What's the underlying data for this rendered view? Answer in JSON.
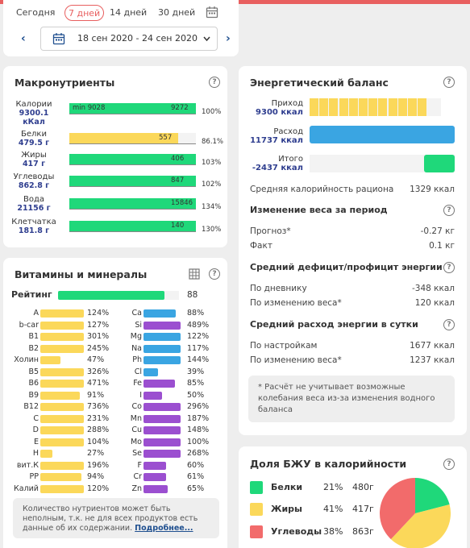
{
  "colors": {
    "accent": "#e85f5f",
    "nav": "#1f4f8f",
    "green": "#1fd87a",
    "yellow": "#fbd85a",
    "blue": "#3aa5e2",
    "purple": "#9b4fd0",
    "red": "#f26b6b"
  },
  "toolbar": {
    "tabs": [
      "Сегодня",
      "7 дней",
      "14 дней",
      "30 дней"
    ],
    "active_tab": "7 дней",
    "date_range": "18 сен 2020 - 24 сен 2020"
  },
  "macro": {
    "title": "Макронутриенты",
    "rows": [
      {
        "name": "Калории",
        "value": "9300.1",
        "unit": "кКал",
        "bar_label": "9272",
        "min_label": "min 9028",
        "pct": "100%",
        "fill": 1.0,
        "color": "green"
      },
      {
        "name": "Белки",
        "value": "479.5 г",
        "unit": "",
        "bar_label": "557",
        "min_label": "",
        "pct": "86.1%",
        "fill": 0.861,
        "color": "yellow"
      },
      {
        "name": "Жиры",
        "value": "417 г",
        "unit": "",
        "bar_label": "406",
        "min_label": "",
        "pct": "103%",
        "fill": 1.0,
        "color": "green"
      },
      {
        "name": "Углеводы",
        "value": "862.8 г",
        "unit": "",
        "bar_label": "847",
        "min_label": "",
        "pct": "102%",
        "fill": 1.0,
        "color": "green"
      },
      {
        "name": "Вода",
        "value": "21156 г",
        "unit": "",
        "bar_label": "15846",
        "min_label": "",
        "pct": "134%",
        "fill": 1.0,
        "color": "green"
      },
      {
        "name": "Клетчатка",
        "value": "181.8 г",
        "unit": "",
        "bar_label": "140",
        "min_label": "",
        "pct": "130%",
        "fill": 1.0,
        "color": "green"
      }
    ]
  },
  "vitamins": {
    "title": "Витамины и минералы",
    "rating_label": "Рейтинг",
    "rating_value": "88",
    "rating_fill": 0.88,
    "left": [
      {
        "name": "A",
        "pct": "124%",
        "fill": 1.0
      },
      {
        "name": "b-car",
        "pct": "127%",
        "fill": 1.0
      },
      {
        "name": "B1",
        "pct": "301%",
        "fill": 1.0
      },
      {
        "name": "B2",
        "pct": "245%",
        "fill": 1.0
      },
      {
        "name": "Холин",
        "pct": "47%",
        "fill": 0.47
      },
      {
        "name": "B5",
        "pct": "326%",
        "fill": 1.0
      },
      {
        "name": "B6",
        "pct": "471%",
        "fill": 1.0
      },
      {
        "name": "B9",
        "pct": "91%",
        "fill": 0.91
      },
      {
        "name": "B12",
        "pct": "736%",
        "fill": 1.0
      },
      {
        "name": "C",
        "pct": "231%",
        "fill": 1.0
      },
      {
        "name": "D",
        "pct": "288%",
        "fill": 1.0
      },
      {
        "name": "E",
        "pct": "104%",
        "fill": 1.0
      },
      {
        "name": "H",
        "pct": "27%",
        "fill": 0.27
      },
      {
        "name": "вит.К",
        "pct": "196%",
        "fill": 1.0
      },
      {
        "name": "PP",
        "pct": "94%",
        "fill": 0.94
      },
      {
        "name": "Калий",
        "pct": "120%",
        "fill": 1.0
      }
    ],
    "right": [
      {
        "name": "Ca",
        "pct": "88%",
        "fill": 0.88,
        "color": "blue"
      },
      {
        "name": "Si",
        "pct": "489%",
        "fill": 1.0,
        "color": "purple"
      },
      {
        "name": "Mg",
        "pct": "122%",
        "fill": 1.0,
        "color": "blue"
      },
      {
        "name": "Na",
        "pct": "117%",
        "fill": 1.0,
        "color": "blue"
      },
      {
        "name": "Ph",
        "pct": "144%",
        "fill": 1.0,
        "color": "blue"
      },
      {
        "name": "Cl",
        "pct": "39%",
        "fill": 0.39,
        "color": "blue"
      },
      {
        "name": "Fe",
        "pct": "85%",
        "fill": 0.85,
        "color": "purple"
      },
      {
        "name": "I",
        "pct": "50%",
        "fill": 0.5,
        "color": "purple"
      },
      {
        "name": "Co",
        "pct": "296%",
        "fill": 1.0,
        "color": "purple"
      },
      {
        "name": "Mn",
        "pct": "187%",
        "fill": 1.0,
        "color": "purple"
      },
      {
        "name": "Cu",
        "pct": "148%",
        "fill": 1.0,
        "color": "purple"
      },
      {
        "name": "Mo",
        "pct": "100%",
        "fill": 1.0,
        "color": "purple"
      },
      {
        "name": "Se",
        "pct": "268%",
        "fill": 1.0,
        "color": "purple"
      },
      {
        "name": "F",
        "pct": "60%",
        "fill": 0.6,
        "color": "purple"
      },
      {
        "name": "Cr",
        "pct": "61%",
        "fill": 0.61,
        "color": "purple"
      },
      {
        "name": "Zn",
        "pct": "65%",
        "fill": 0.65,
        "color": "purple"
      }
    ],
    "note": "Количество нутриентов может быть неполным, т.к. не для всех продуктов есть данные об их содержании.",
    "note_link": "Подробнее..."
  },
  "energy": {
    "title": "Энергетический баланс",
    "rows": [
      {
        "label": "Приход",
        "value": "9300 ккал"
      },
      {
        "label": "Расход",
        "value": "11737 ккал"
      },
      {
        "label": "Итого",
        "value": "-2437 ккал"
      }
    ],
    "avg_cal_label": "Средняя калорийность рациона",
    "avg_cal_value": "1329 ккал",
    "weight_title": "Изменение веса за период",
    "forecast_label": "Прогноз*",
    "forecast_value": "-0.27 кг",
    "fact_label": "Факт",
    "fact_value": "0.1 кг",
    "deficit_title": "Средний дефицит/профицит энергии",
    "diary_label": "По дневнику",
    "diary_value": "-348 ккал",
    "weight_change_label": "По изменению веса*",
    "weight_change_value": "120 ккал",
    "expense_title": "Средний расход энергии в сутки",
    "settings_label": "По настройкам",
    "settings_value": "1677 ккал",
    "weight_change2_label": "По изменению веса*",
    "weight_change2_value": "1237 ккал",
    "note": "* Расчёт не учитывает возможные колебания веса из-за изменения водного баланса"
  },
  "bju": {
    "title": "Доля БЖУ в калорийности",
    "rows": [
      {
        "name": "Белки",
        "pct": "21%",
        "grams": "480г",
        "share": 21,
        "color": "#1fd87a"
      },
      {
        "name": "Жиры",
        "pct": "41%",
        "grams": "417г",
        "share": 41,
        "color": "#fbd85a"
      },
      {
        "name": "Углеводы",
        "pct": "38%",
        "grams": "863г",
        "share": 38,
        "color": "#f26b6b"
      }
    ]
  }
}
